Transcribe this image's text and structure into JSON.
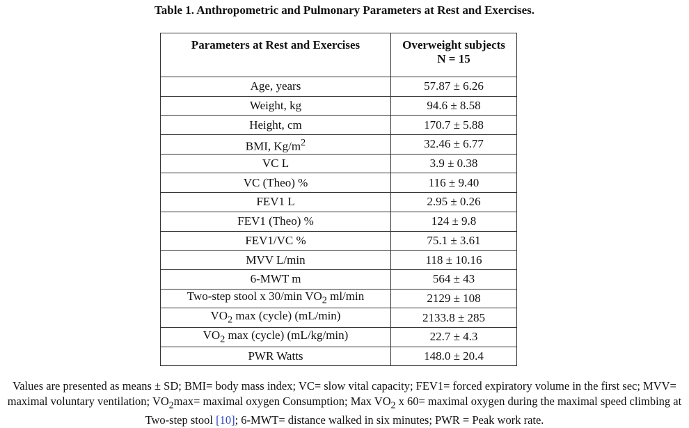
{
  "caption": "Table 1. Anthropometric and Pulmonary Parameters at Rest and Exercises.",
  "table": {
    "header": {
      "col1": "Parameters at Rest and Exercises",
      "col2_line1": "Overweight subjects",
      "col2_line2": "N = 15"
    },
    "rows": [
      {
        "param": "Age, years",
        "value": "57.87 ± 6.26"
      },
      {
        "param": "Weight, kg",
        "value": "94.6 ± 8.58"
      },
      {
        "param": "Height, cm",
        "value": "170.7 ± 5.88"
      },
      {
        "param_pre": "BMI, Kg/m",
        "param_sup": "2",
        "value": "32.46 ± 6.77"
      },
      {
        "param": "VC L",
        "value": "3.9 ± 0.38"
      },
      {
        "param": "VC (Theo) %",
        "value": "116 ± 9.40"
      },
      {
        "param": "FEV1 L",
        "value": "2.95 ± 0.26"
      },
      {
        "param": "FEV1 (Theo) %",
        "value": "124 ± 9.8"
      },
      {
        "param": "FEV1/VC %",
        "value": "75.1 ± 3.61"
      },
      {
        "param": "MVV L/min",
        "value": "118 ± 10.16"
      },
      {
        "param": "6-MWT m",
        "value": "564 ± 43"
      },
      {
        "param_pre": "Two-step stool x 30/min VO",
        "param_sub": "2",
        "param_post": " ml/min",
        "value": "2129 ± 108"
      },
      {
        "param_pre": "VO",
        "param_sub": "2",
        "param_post": " max (cycle) (mL/min)",
        "value": "2133.8 ± 285"
      },
      {
        "param_pre": "VO",
        "param_sub": "2",
        "param_post": " max (cycle) (mL/kg/min)",
        "value": "22.7 ± 4.3"
      },
      {
        "param": "PWR Watts",
        "value": "148.0 ± 20.4"
      }
    ]
  },
  "footnote": {
    "part1": "Values are presented as means ± SD; BMI= body mass index; VC= slow vital capacity; FEV1= forced expiratory volume in the first sec; MVV= maximal voluntary ventilation; VO",
    "sub1": "2",
    "part2": "max= maximal oxygen Consumption; Max VO",
    "sub2": "2",
    "part3": " x 60= maximal oxygen during the maximal speed climbing at Two-step stool ",
    "ref": "[10]",
    "part4": "; 6-MWT= distance walked in six minutes; PWR = Peak work rate."
  }
}
